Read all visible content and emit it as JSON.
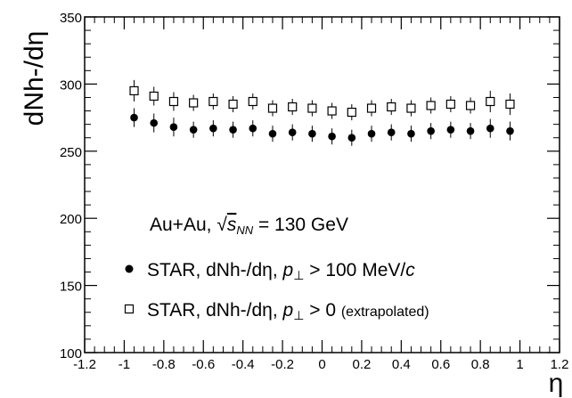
{
  "chart_data": {
    "type": "scatter",
    "xlabel": "η",
    "ylabel": "dNh-/dη",
    "xlim": [
      -1.2,
      1.2
    ],
    "ylim": [
      100,
      350
    ],
    "x_ticks": [
      -1.2,
      -1,
      -0.8,
      -0.6,
      -0.4,
      -0.2,
      0,
      0.2,
      0.4,
      0.6,
      0.8,
      1,
      1.2
    ],
    "x_tick_labels": [
      "-1.2",
      "-1",
      "-0.8",
      "-0.6",
      "-0.4",
      "-0.2",
      "0",
      "0.2",
      "0.4",
      "0.6",
      "0.8",
      "1",
      "1.2"
    ],
    "y_ticks": [
      100,
      150,
      200,
      250,
      300,
      350
    ],
    "y_tick_labels": [
      "100",
      "150",
      "200",
      "250",
      "300",
      "350"
    ],
    "grid": false,
    "legend_position": "bottom-center",
    "annotation": {
      "prefix": "Au+Au, ",
      "sqrt": "√",
      "s": "s",
      "sub": "NN",
      "suffix": " = 130 GeV"
    },
    "series": [
      {
        "name": "STAR, dNh-/dη, p⊥ > 100 MeV/c",
        "legend": {
          "main": "STAR, dNh-/dη, ",
          "p": "p",
          "perp": "⊥",
          "rest": " > 100 MeV/",
          "c": "c"
        },
        "marker": "filled-circle",
        "x": [
          -0.95,
          -0.85,
          -0.75,
          -0.65,
          -0.55,
          -0.45,
          -0.35,
          -0.25,
          -0.15,
          -0.05,
          0.05,
          0.15,
          0.25,
          0.35,
          0.45,
          0.55,
          0.65,
          0.75,
          0.85,
          0.95
        ],
        "y": [
          275,
          271,
          268,
          266,
          267,
          266,
          267,
          263,
          264,
          263,
          261,
          260,
          263,
          264,
          263,
          265,
          266,
          265,
          267,
          265
        ],
        "err": [
          7,
          7,
          7,
          6,
          6,
          6,
          6,
          6,
          6,
          6,
          6,
          6,
          6,
          6,
          6,
          6,
          6,
          6,
          7,
          7
        ]
      },
      {
        "name": "STAR, dNh-/dη, p⊥ > 0 (extrapolated)",
        "legend": {
          "main": "STAR, dNh-/dη, ",
          "p": "p",
          "perp": "⊥",
          "rest": " > 0 ",
          "small": "(extrapolated)"
        },
        "marker": "open-square",
        "x": [
          -0.95,
          -0.85,
          -0.75,
          -0.65,
          -0.55,
          -0.45,
          -0.35,
          -0.25,
          -0.15,
          -0.05,
          0.05,
          0.15,
          0.25,
          0.35,
          0.45,
          0.55,
          0.65,
          0.75,
          0.85,
          0.95
        ],
        "y": [
          295,
          291,
          287,
          286,
          287,
          285,
          287,
          282,
          283,
          282,
          280,
          279,
          282,
          283,
          282,
          284,
          285,
          284,
          287,
          285
        ],
        "err": [
          8,
          7,
          7,
          6,
          6,
          6,
          6,
          6,
          6,
          6,
          6,
          6,
          6,
          6,
          6,
          6,
          6,
          6,
          8,
          8
        ]
      }
    ]
  }
}
